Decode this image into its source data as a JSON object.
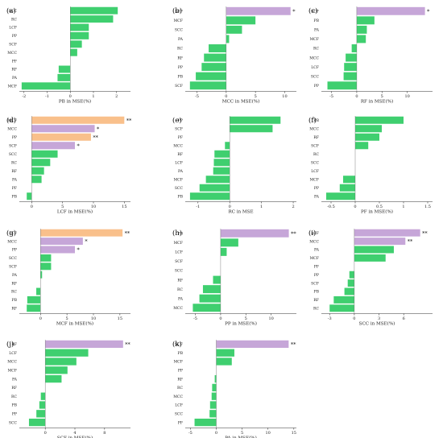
{
  "colors": {
    "base": "#3fcf6f",
    "mid": "#c6a6d8",
    "high": "#f9c08b",
    "axis": "#333333"
  },
  "chart_data": [
    {
      "panel": "(a)",
      "type": "bar",
      "orientation": "horizontal",
      "xlabel": "PB in MSE(%)",
      "xlim": [
        -2.2,
        2.6
      ],
      "xticks": [
        -2,
        -1,
        0,
        1,
        2
      ],
      "categories": [
        "SCC",
        "RC",
        "LCF",
        "PP",
        "SCF",
        "MCC",
        "PF",
        "RF",
        "PA",
        "MCF"
      ],
      "values": [
        2.05,
        1.85,
        0.8,
        0.8,
        0.5,
        0.3,
        0,
        -0.5,
        -0.55,
        -2.1
      ],
      "color": [
        "base",
        "base",
        "base",
        "base",
        "base",
        "base",
        "base",
        "base",
        "base",
        "base"
      ],
      "sig": [
        "",
        "",
        "",
        "",
        "",
        "",
        "",
        "",
        "",
        ""
      ]
    },
    {
      "panel": "(b)",
      "type": "bar",
      "orientation": "horizontal",
      "xlabel": "MCC in MSE(%)",
      "xlim": [
        -7,
        12
      ],
      "xticks": [
        -5,
        0,
        5,
        10
      ],
      "categories": [
        "LCF",
        "MCF",
        "SCC",
        "PA",
        "RC",
        "RF",
        "PP",
        "PB",
        "SCF"
      ],
      "values": [
        11,
        5,
        2.7,
        0.5,
        -3,
        -3.8,
        -4.2,
        -5.2,
        -6.2
      ],
      "color": [
        "mid",
        "base",
        "base",
        "base",
        "base",
        "base",
        "base",
        "base",
        "base"
      ],
      "sig": [
        "*",
        "",
        "",
        "",
        "",
        "",
        "",
        "",
        ""
      ]
    },
    {
      "panel": "(c)",
      "type": "bar",
      "orientation": "horizontal",
      "xlabel": "RF in MSE(%)",
      "xlim": [
        -7,
        15
      ],
      "xticks": [
        -5,
        0,
        5,
        10
      ],
      "categories": [
        "SCF",
        "PB",
        "PA",
        "MCF",
        "RC",
        "MCC",
        "LCF",
        "SCC",
        "PP"
      ],
      "values": [
        13.5,
        3.5,
        2,
        1.8,
        -1,
        -2.2,
        -2.5,
        -2.6,
        -5.8
      ],
      "color": [
        "mid",
        "base",
        "base",
        "base",
        "base",
        "base",
        "base",
        "base",
        "base"
      ],
      "sig": [
        "*",
        "",
        "",
        "",
        "",
        "",
        "",
        "",
        ""
      ]
    },
    {
      "panel": "(d)",
      "type": "bar",
      "orientation": "horizontal",
      "xlabel": "LCF in MSE(%)",
      "xlim": [
        -2,
        16
      ],
      "xticks": [
        0,
        5,
        10,
        15
      ],
      "categories": [
        "MCF",
        "MCC",
        "PP",
        "SCF",
        "SCC",
        "RC",
        "RF",
        "PA",
        "PF",
        "PB"
      ],
      "values": [
        15,
        10.2,
        9.6,
        7,
        4.2,
        3,
        2,
        1.6,
        0,
        -0.8
      ],
      "color": [
        "high",
        "mid",
        "high",
        "mid",
        "base",
        "base",
        "base",
        "base",
        "base",
        "base"
      ],
      "sig": [
        "**",
        "*",
        "**",
        "*",
        "",
        "",
        "",
        "",
        "",
        ""
      ]
    },
    {
      "panel": "(e)",
      "type": "bar",
      "orientation": "horizontal",
      "xlabel": "RC in MSE",
      "xlim": [
        -1.4,
        2.1
      ],
      "xticks": [
        -1,
        0,
        1,
        2
      ],
      "categories": [
        "PP",
        "SCF",
        "PF",
        "MCC",
        "RF",
        "LCF",
        "PA",
        "MCF",
        "SCC",
        "PB"
      ],
      "values": [
        1.6,
        1.35,
        0,
        -0.15,
        -0.48,
        -0.5,
        -0.52,
        -0.75,
        -0.95,
        -1.25
      ],
      "color": [
        "base",
        "base",
        "base",
        "base",
        "base",
        "base",
        "base",
        "base",
        "base",
        "base"
      ],
      "sig": [
        "",
        "",
        "",
        "",
        "",
        "",
        "",
        "",
        "",
        ""
      ]
    },
    {
      "panel": "(f)",
      "type": "bar",
      "orientation": "horizontal",
      "xlabel": "PF in MSE(%)",
      "xlim": [
        -0.7,
        1.6
      ],
      "xticks": [
        -0.5,
        0,
        0.5,
        1,
        1.5
      ],
      "categories": [
        "PB",
        "MCC",
        "RF",
        "SCF",
        "RC",
        "SCC",
        "LCF",
        "MCF",
        "PP",
        "PA"
      ],
      "values": [
        1.0,
        0.55,
        0.5,
        0.27,
        0,
        0,
        0,
        -0.25,
        -0.32,
        -0.6
      ],
      "color": [
        "base",
        "base",
        "base",
        "base",
        "base",
        "base",
        "base",
        "base",
        "base",
        "base"
      ],
      "sig": [
        "",
        "",
        "",
        "",
        "",
        "",
        "",
        "",
        "",
        ""
      ]
    },
    {
      "panel": "(g)",
      "type": "bar",
      "orientation": "horizontal",
      "xlabel": "MCF in MSE(%)",
      "xlim": [
        -4,
        17
      ],
      "xticks": [
        0,
        5,
        10,
        15
      ],
      "categories": [
        "LCF",
        "MCC",
        "PP",
        "SCC",
        "SCF",
        "PA",
        "RF",
        "RC",
        "PB",
        "RF"
      ],
      "values": [
        15.5,
        8,
        6.5,
        2,
        2,
        0.3,
        0,
        -0.8,
        -2.5,
        -2.6
      ],
      "color": [
        "high",
        "mid",
        "mid",
        "base",
        "base",
        "base",
        "base",
        "base",
        "base",
        "base"
      ],
      "sig": [
        "**",
        "*",
        "*",
        "",
        "",
        "",
        "",
        "",
        "",
        ""
      ]
    },
    {
      "panel": "(h)",
      "type": "bar",
      "orientation": "horizontal",
      "xlabel": "PP in MSE(%)",
      "xlim": [
        -7,
        15
      ],
      "xticks": [
        -5,
        0,
        5,
        10
      ],
      "categories": [
        "PB",
        "MCF",
        "LCF",
        "SCF",
        "SCC",
        "RF",
        "RC",
        "PA",
        "MCC"
      ],
      "values": [
        13.5,
        3.5,
        1.2,
        0,
        0,
        -1.5,
        -3.5,
        -4.2,
        -5.5
      ],
      "color": [
        "mid",
        "base",
        "base",
        "base",
        "base",
        "base",
        "base",
        "base",
        "base"
      ],
      "sig": [
        "**",
        "",
        "",
        "",
        "",
        "",
        "",
        "",
        ""
      ]
    },
    {
      "panel": "(i)",
      "type": "bar",
      "orientation": "horizontal",
      "xlabel": "SCC in MSE(%)",
      "xlim": [
        -4,
        9.5
      ],
      "xticks": [
        -3,
        0,
        3,
        6
      ],
      "categories": [
        "LCF",
        "MCC",
        "PA",
        "MCF",
        "PF",
        "PP",
        "SCF",
        "PB",
        "RF",
        "RC"
      ],
      "values": [
        8,
        6.2,
        4.8,
        3.8,
        0,
        -0.6,
        -0.8,
        -1.2,
        -2.5,
        -3
      ],
      "color": [
        "mid",
        "mid",
        "base",
        "base",
        "base",
        "base",
        "base",
        "base",
        "base",
        "base"
      ],
      "sig": [
        "**",
        "**",
        "",
        "",
        "",
        "",
        "",
        "",
        "",
        ""
      ]
    },
    {
      "panel": "(j)",
      "type": "bar",
      "orientation": "horizontal",
      "xlabel": "SCF in MSE(%)",
      "xlim": [
        -3.5,
        11.5
      ],
      "xticks": [
        0,
        4,
        8
      ],
      "categories": [
        "RF",
        "LCF",
        "MCC",
        "MCF",
        "PA",
        "RF",
        "RC",
        "PB",
        "PP",
        "SCC"
      ],
      "values": [
        10.5,
        5.8,
        4.2,
        3,
        2.2,
        0,
        -0.6,
        -0.8,
        -1.2,
        -2.2
      ],
      "color": [
        "mid",
        "base",
        "base",
        "base",
        "base",
        "base",
        "base",
        "base",
        "base",
        "base"
      ],
      "sig": [
        "**",
        "",
        "",
        "",
        "",
        "",
        "",
        "",
        "",
        ""
      ]
    },
    {
      "panel": "(k)",
      "type": "bar",
      "orientation": "horizontal",
      "xlabel": "PA in MSE(%)",
      "xlim": [
        -6,
        15.5
      ],
      "xticks": [
        -5,
        0,
        5,
        10,
        15
      ],
      "categories": [
        "SCF",
        "PB",
        "MCF",
        "PP",
        "RF",
        "RC",
        "MCC",
        "LCF",
        "SCC",
        "PF"
      ],
      "values": [
        14,
        3.5,
        3,
        0,
        -0.3,
        -0.8,
        -0.9,
        -1.2,
        -1.3,
        -4.2
      ],
      "color": [
        "mid",
        "base",
        "base",
        "base",
        "base",
        "base",
        "base",
        "base",
        "base",
        "base"
      ],
      "sig": [
        "**",
        "",
        "",
        "",
        "",
        "",
        "",
        "",
        "",
        ""
      ]
    }
  ]
}
